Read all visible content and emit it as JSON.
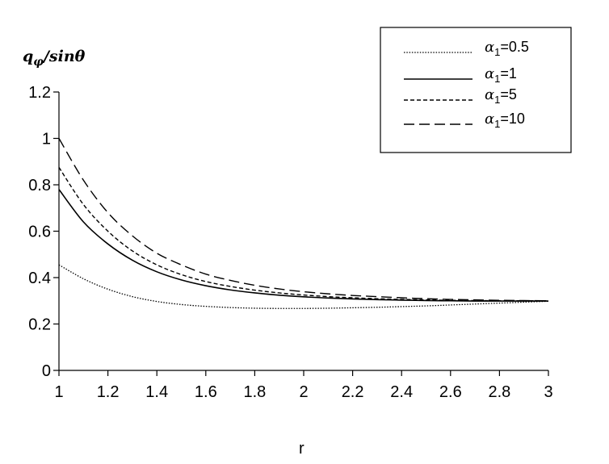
{
  "chart_data": {
    "type": "line",
    "title": "",
    "xlabel": "r",
    "ylabel": "q_φ/sinθ",
    "xlim": [
      1,
      3
    ],
    "ylim": [
      0,
      1.2
    ],
    "x_ticks": [
      "1",
      "1.2",
      "1.4",
      "1.6",
      "1.8",
      "2",
      "2.2",
      "2.4",
      "2.6",
      "2.8",
      "3"
    ],
    "y_ticks": [
      "0",
      "0.2",
      "0.4",
      "0.6",
      "0.8",
      "1",
      "1.2"
    ],
    "grid": false,
    "legend_position": "top-right",
    "x": [
      1.0,
      1.1,
      1.2,
      1.3,
      1.4,
      1.5,
      1.6,
      1.7,
      1.8,
      1.9,
      2.0,
      2.1,
      2.2,
      2.3,
      2.4,
      2.5,
      2.6,
      2.7,
      2.8,
      2.9,
      3.0
    ],
    "series": [
      {
        "name": "α1=0.5",
        "dash": "dotted",
        "values": [
          0.455,
          0.395,
          0.35,
          0.318,
          0.297,
          0.284,
          0.276,
          0.271,
          0.268,
          0.267,
          0.267,
          0.268,
          0.27,
          0.272,
          0.275,
          0.278,
          0.282,
          0.286,
          0.29,
          0.294,
          0.298
        ]
      },
      {
        "name": "α1=1",
        "dash": "solid",
        "values": [
          0.78,
          0.64,
          0.545,
          0.475,
          0.425,
          0.39,
          0.365,
          0.347,
          0.334,
          0.324,
          0.317,
          0.312,
          0.308,
          0.305,
          0.303,
          0.301,
          0.3,
          0.299,
          0.299,
          0.299,
          0.299
        ]
      },
      {
        "name": "α1=5",
        "dash": "short-dash",
        "values": [
          0.875,
          0.715,
          0.6,
          0.515,
          0.455,
          0.413,
          0.383,
          0.362,
          0.346,
          0.334,
          0.325,
          0.318,
          0.313,
          0.309,
          0.306,
          0.304,
          0.302,
          0.301,
          0.3,
          0.3,
          0.3
        ]
      },
      {
        "name": "α1=10",
        "dash": "long-dash",
        "values": [
          1.0,
          0.82,
          0.68,
          0.58,
          0.505,
          0.455,
          0.415,
          0.388,
          0.367,
          0.351,
          0.339,
          0.33,
          0.323,
          0.318,
          0.313,
          0.309,
          0.306,
          0.304,
          0.302,
          0.301,
          0.3
        ]
      }
    ]
  }
}
